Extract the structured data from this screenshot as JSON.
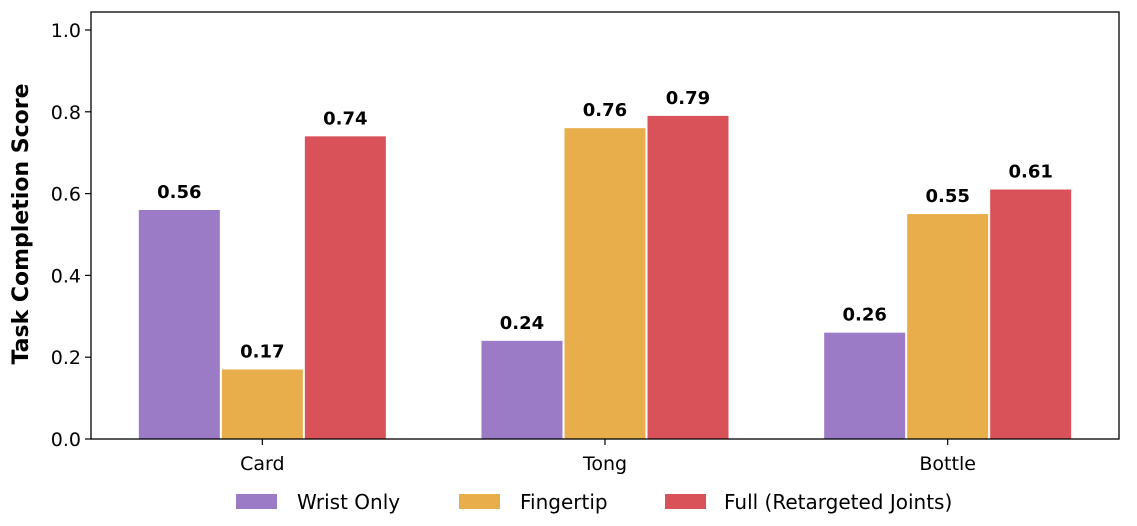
{
  "chart_data": {
    "type": "bar",
    "categories": [
      "Card",
      "Tong",
      "Bottle"
    ],
    "series": [
      {
        "name": "Wrist Only",
        "values": [
          0.56,
          0.24,
          0.26
        ],
        "color": "#9b7bc6"
      },
      {
        "name": "Fingertip",
        "values": [
          0.17,
          0.76,
          0.55
        ],
        "color": "#e8ae4b"
      },
      {
        "name": "Full (Retargeted Joints)",
        "values": [
          0.74,
          0.79,
          0.61
        ],
        "color": "#d95159"
      }
    ],
    "data_labels": [
      [
        "0.56",
        "0.24",
        "0.26"
      ],
      [
        "0.17",
        "0.76",
        "0.55"
      ],
      [
        "0.74",
        "0.79",
        "0.61"
      ]
    ],
    "xlabel": "",
    "ylabel": "Task Completion Score",
    "ylim": [
      0,
      1.0
    ],
    "yticks": [
      "0.0",
      "0.2",
      "0.4",
      "0.6",
      "0.8",
      "1.0"
    ],
    "grid": false,
    "legend": "bottom"
  }
}
